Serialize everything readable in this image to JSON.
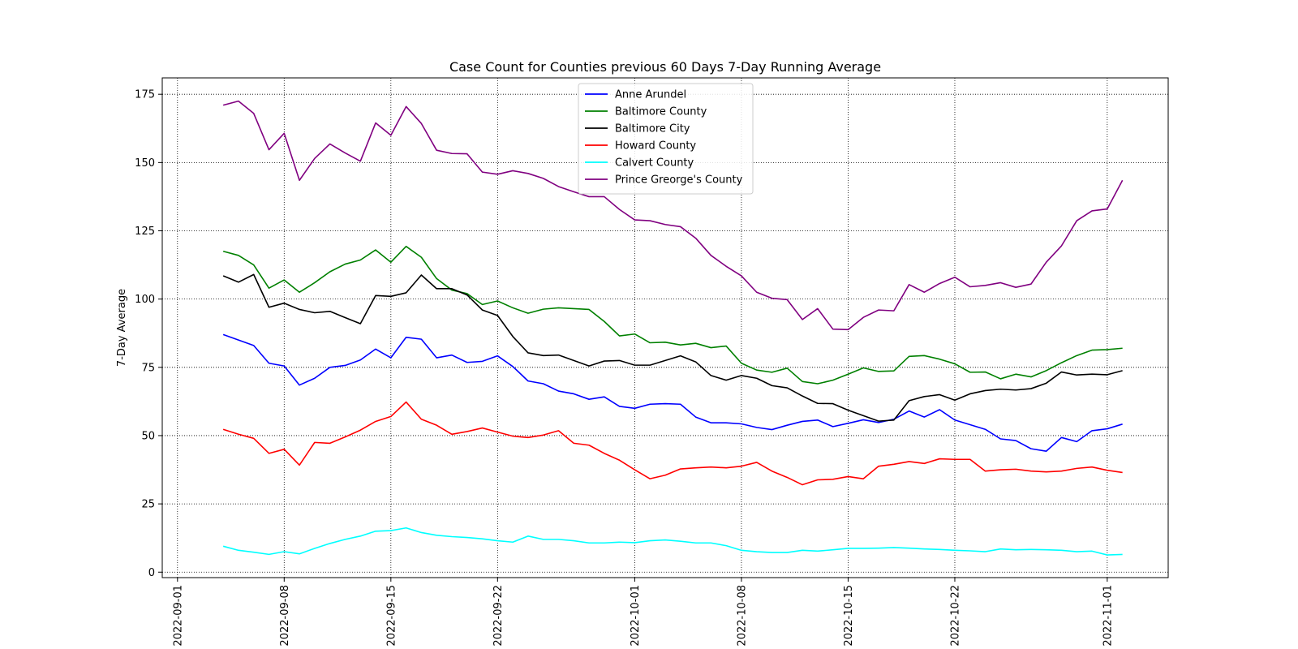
{
  "chart_data": {
    "type": "line",
    "title": "Case Count for Counties previous 60 Days 7-Day Running Average",
    "xlabel": "",
    "ylabel": "7-Day Average",
    "x_start_date": "2022-09-04",
    "x_end_date": "2022-11-02",
    "xlim": [
      "2022-08-31",
      "2022-11-05"
    ],
    "ylim": [
      -2,
      181
    ],
    "x_ticks": [
      "2022-09-01",
      "2022-09-08",
      "2022-09-15",
      "2022-09-22",
      "2022-10-01",
      "2022-10-08",
      "2022-10-15",
      "2022-10-22",
      "2022-11-01"
    ],
    "y_ticks": [
      0,
      25,
      50,
      75,
      100,
      125,
      150,
      175
    ],
    "grid": true,
    "legend_position": "top-center",
    "series": [
      {
        "name": "Anne Arundel",
        "color": "#0000ff",
        "values": [
          87,
          85,
          83,
          76.5,
          75.5,
          68.5,
          71,
          75,
          75.7,
          77.7,
          81.7,
          78.5,
          86,
          85.3,
          78.5,
          79.5,
          76.8,
          77.2,
          79.2,
          75.3,
          70,
          69,
          66.3,
          65.3,
          63.3,
          64.2,
          60.7,
          60,
          61.5,
          61.7,
          61.5,
          56.8,
          54.7,
          54.7,
          54.3,
          53,
          52.2,
          53.8,
          55.2,
          55.7,
          53.3,
          54.5,
          55.8,
          54.8,
          56,
          59,
          56.8,
          59.5,
          55.7,
          54,
          52.3,
          48.8,
          48.2,
          45.2,
          44.3,
          49.3,
          47.8,
          51.8,
          52.5,
          54.2
        ]
      },
      {
        "name": "Baltimore County",
        "color": "#008000",
        "values": [
          117.5,
          116,
          112.5,
          104,
          107,
          102.5,
          106,
          110,
          112.8,
          114.3,
          118,
          113.5,
          119.3,
          115.3,
          107.5,
          103.3,
          102,
          98,
          99.3,
          96.8,
          94.8,
          96.3,
          96.8,
          96.5,
          96.2,
          91.8,
          86.5,
          87.2,
          84,
          84.2,
          83.2,
          83.8,
          82.2,
          82.8,
          76.5,
          74,
          73.2,
          74.7,
          69.8,
          69,
          70.3,
          72.5,
          74.8,
          73.5,
          73.7,
          79,
          79.3,
          78,
          76.3,
          73.2,
          73.3,
          70.8,
          72.5,
          71.5,
          73.8,
          76.7,
          79.3,
          81.3,
          81.5,
          82
        ]
      },
      {
        "name": "Baltimore City",
        "color": "#000000",
        "values": [
          108.5,
          106.2,
          109,
          97,
          98.5,
          96.2,
          95,
          95.5,
          93.2,
          91,
          101.3,
          101,
          102.3,
          108.8,
          103.8,
          103.8,
          101.5,
          96,
          94,
          86.3,
          80.3,
          79.3,
          79.5,
          77.5,
          75.5,
          77.3,
          77.5,
          75.8,
          75.8,
          77.5,
          79.2,
          77,
          72,
          70.3,
          72,
          71,
          68.3,
          67.5,
          64.5,
          61.8,
          61.7,
          59.3,
          57.3,
          55.3,
          55.7,
          62.8,
          64.3,
          65,
          63,
          65.3,
          66.5,
          67,
          66.7,
          67.2,
          69.2,
          73.3,
          72.2,
          72.5,
          72.3,
          73.8
        ]
      },
      {
        "name": "Howard County",
        "color": "#ff0000",
        "values": [
          52.3,
          50.5,
          49,
          43.5,
          45,
          39.2,
          47.5,
          47.2,
          49.5,
          52,
          55.2,
          57,
          62.3,
          56,
          53.8,
          50.5,
          51.5,
          52.8,
          51.3,
          49.8,
          49.3,
          50.2,
          51.8,
          47.2,
          46.5,
          43.5,
          41,
          37.5,
          34.2,
          35.5,
          37.8,
          38.2,
          38.5,
          38.2,
          38.8,
          40.2,
          37,
          34.7,
          32,
          33.8,
          34,
          35,
          34.2,
          38.8,
          39.5,
          40.5,
          39.8,
          41.5,
          41.3,
          41.3,
          37,
          37.5,
          37.7,
          37,
          36.7,
          37,
          38,
          38.5,
          37.3,
          36.5
        ]
      },
      {
        "name": "Calvert County",
        "color": "#00ffff",
        "values": [
          9.5,
          8,
          7.3,
          6.5,
          7.5,
          6.7,
          8.7,
          10.5,
          12,
          13.2,
          15,
          15.2,
          16.2,
          14.5,
          13.5,
          13,
          12.7,
          12.2,
          11.5,
          11,
          13.2,
          12,
          12,
          11.5,
          10.7,
          10.7,
          11,
          10.8,
          11.5,
          11.8,
          11.3,
          10.7,
          10.7,
          9.7,
          8,
          7.5,
          7.2,
          7.2,
          8,
          7.7,
          8.2,
          8.7,
          8.7,
          8.8,
          9,
          8.8,
          8.5,
          8.3,
          8,
          7.8,
          7.5,
          8.5,
          8.2,
          8.3,
          8.2,
          8,
          7.5,
          7.7,
          6.3,
          6.5
        ]
      },
      {
        "name": "Prince Greorge's County",
        "color": "#800080",
        "values": [
          171,
          172.5,
          168,
          154.7,
          160.7,
          143.5,
          151.5,
          156.8,
          153.5,
          150.5,
          164.5,
          160,
          170.5,
          164.3,
          154.5,
          153.3,
          153.2,
          146.5,
          145.7,
          147,
          146,
          144.2,
          141.2,
          139.3,
          137.5,
          137.5,
          132.8,
          129,
          128.7,
          127.3,
          126.5,
          122.3,
          116,
          112,
          108.5,
          102.5,
          100.3,
          99.8,
          92.5,
          96.5,
          89,
          88.8,
          93.3,
          96,
          95.7,
          105.3,
          102.5,
          105.7,
          108,
          104.5,
          105,
          106,
          104.3,
          105.5,
          113.5,
          119.5,
          128.7,
          132.3,
          133,
          143.5
        ]
      }
    ]
  }
}
